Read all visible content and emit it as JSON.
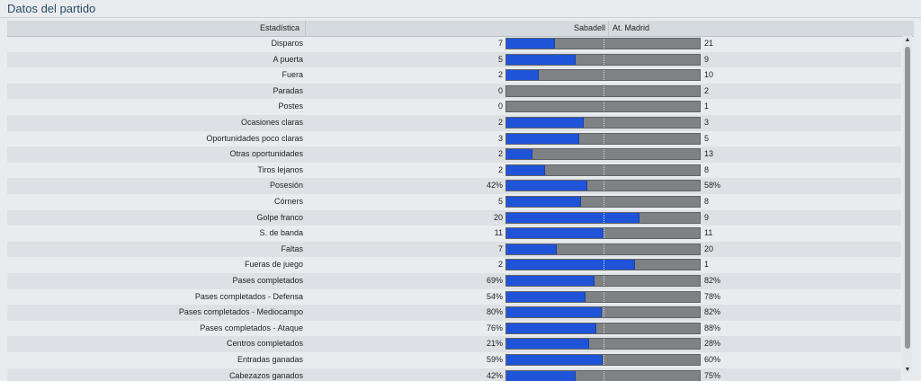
{
  "panel": {
    "title": "Datos del partido"
  },
  "table": {
    "headers": {
      "stat": "Estadística",
      "left_team": "Sabadell",
      "right_team": "At. Madrid"
    },
    "rows": [
      {
        "label": "Disparos",
        "left": "7",
        "right": "21",
        "fill": 0.25
      },
      {
        "label": "A puerta",
        "left": "5",
        "right": "9",
        "fill": 0.357
      },
      {
        "label": "Fuera",
        "left": "2",
        "right": "10",
        "fill": 0.167
      },
      {
        "label": "Paradas",
        "left": "0",
        "right": "2",
        "fill": 0
      },
      {
        "label": "Postes",
        "left": "0",
        "right": "1",
        "fill": 0
      },
      {
        "label": "Ocasiones claras",
        "left": "2",
        "right": "3",
        "fill": 0.4
      },
      {
        "label": "Oportunidades poco claras",
        "left": "3",
        "right": "5",
        "fill": 0.375
      },
      {
        "label": "Otras oportunidades",
        "left": "2",
        "right": "13",
        "fill": 0.133
      },
      {
        "label": "Tiros lejanos",
        "left": "2",
        "right": "8",
        "fill": 0.2
      },
      {
        "label": "Posesión",
        "left": "42%",
        "right": "58%",
        "fill": 0.42
      },
      {
        "label": "Córners",
        "left": "5",
        "right": "8",
        "fill": 0.385
      },
      {
        "label": "Golpe franco",
        "left": "20",
        "right": "9",
        "fill": 0.69
      },
      {
        "label": "S. de banda",
        "left": "11",
        "right": "11",
        "fill": 0.5
      },
      {
        "label": "Faltas",
        "left": "7",
        "right": "20",
        "fill": 0.259
      },
      {
        "label": "Fueras de juego",
        "left": "2",
        "right": "1",
        "fill": 0.667
      },
      {
        "label": "Pases completados",
        "left": "69%",
        "right": "82%",
        "fill": 0.457
      },
      {
        "label": "Pases completados - Defensa",
        "left": "54%",
        "right": "78%",
        "fill": 0.409
      },
      {
        "label": "Pases completados - Mediocampo",
        "left": "80%",
        "right": "82%",
        "fill": 0.494
      },
      {
        "label": "Pases completados - Ataque",
        "left": "76%",
        "right": "88%",
        "fill": 0.463
      },
      {
        "label": "Centros completados",
        "left": "21%",
        "right": "28%",
        "fill": 0.429
      },
      {
        "label": "Entradas ganadas",
        "left": "59%",
        "right": "60%",
        "fill": 0.496
      },
      {
        "label": "Cabezazos ganados",
        "left": "42%",
        "right": "75%",
        "fill": 0.359
      }
    ]
  },
  "colors": {
    "home_bar": "#1f53d8",
    "away_bar": "#7f8285"
  },
  "icons": {
    "scroll_up": "scroll-up-icon",
    "scroll_down": "scroll-down-icon"
  }
}
